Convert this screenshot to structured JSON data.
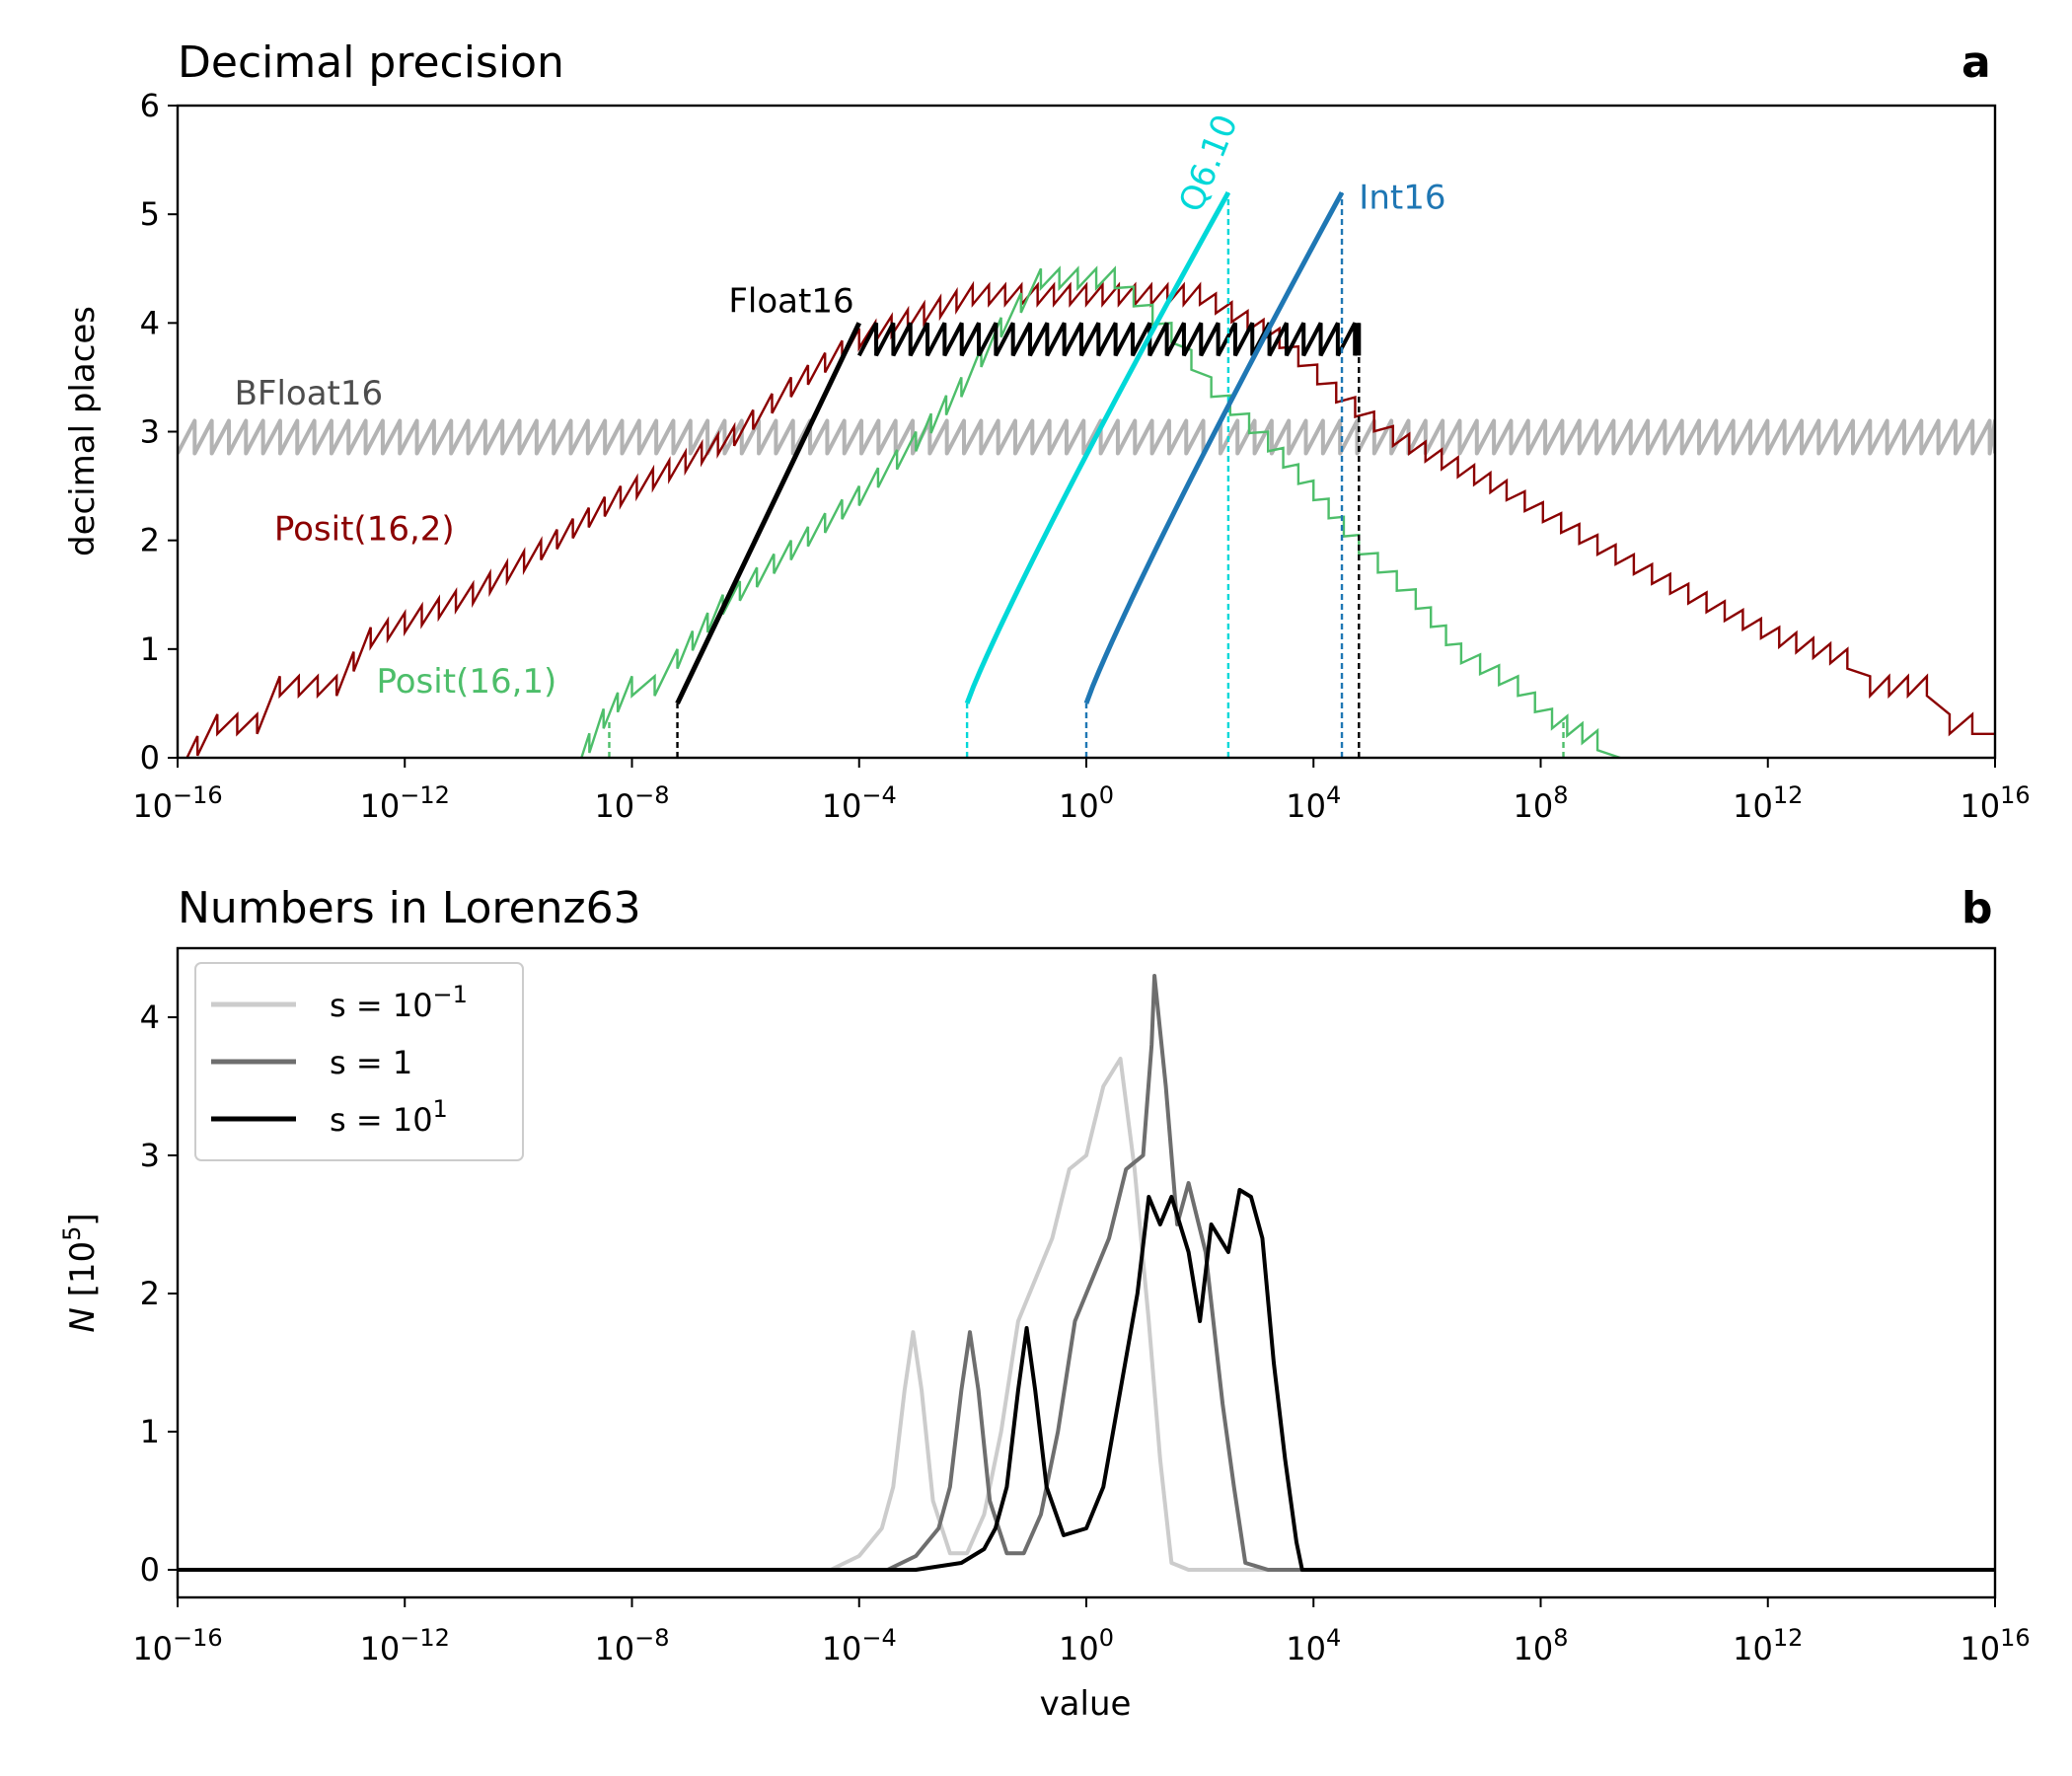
{
  "chart_data": [
    {
      "panel": "a",
      "type": "line",
      "title": "Decimal precision",
      "xlabel": "",
      "ylabel": "decimal places",
      "xscale": "log",
      "xlim": [
        1e-16,
        1e+16
      ],
      "ylim": [
        0,
        6
      ],
      "xticks": [
        1e-16,
        1e-12,
        1e-08,
        0.0001,
        1,
        10000.0,
        100000000.0,
        1000000000000.0,
        1e+16
      ],
      "xticklabels": [
        {
          "base": "10",
          "exp": "−16"
        },
        {
          "base": "10",
          "exp": "−12"
        },
        {
          "base": "10",
          "exp": "−8"
        },
        {
          "base": "10",
          "exp": "−4"
        },
        {
          "base": "10",
          "exp": "0"
        },
        {
          "base": "10",
          "exp": "4"
        },
        {
          "base": "10",
          "exp": "8"
        },
        {
          "base": "10",
          "exp": "12"
        },
        {
          "base": "10",
          "exp": "16"
        }
      ],
      "yticks": [
        0,
        1,
        2,
        3,
        4,
        5,
        6
      ],
      "grid": false,
      "series": [
        {
          "name": "BFloat16",
          "color": "#b3b3b3",
          "label_color": "#4d4d4d",
          "kind": "sawtooth",
          "xrange_log10": [
            -16,
            16
          ],
          "ymin": 2.8,
          "ymax": 3.1,
          "label_at": [
            -15,
            3.25
          ]
        },
        {
          "name": "Posit(16,2)",
          "color": "#8b0000",
          "kind": "envelope",
          "env_log10": [
            [
              -16,
              0
            ],
            [
              -15.3,
              0.4
            ],
            [
              -14.6,
              0.4
            ],
            [
              -14.2,
              0.75
            ],
            [
              -13.2,
              0.75
            ],
            [
              -12.6,
              1.2
            ],
            [
              -10.8,
              1.6
            ],
            [
              -9.6,
              2.0
            ],
            [
              -8.2,
              2.5
            ],
            [
              -6.2,
              3.05
            ],
            [
              -5.2,
              3.5
            ],
            [
              -4.0,
              3.95
            ],
            [
              -2.0,
              4.35
            ],
            [
              0,
              4.35
            ],
            [
              2.0,
              4.35
            ],
            [
              3.4,
              3.95
            ],
            [
              4.4,
              3.45
            ],
            [
              5.4,
              3.05
            ],
            [
              7.4,
              2.55
            ],
            [
              9.0,
              2.05
            ],
            [
              10.6,
              1.6
            ],
            [
              12.2,
              1.2
            ],
            [
              13.4,
              1.0
            ],
            [
              13.8,
              0.75
            ],
            [
              14.8,
              0.75
            ],
            [
              15.2,
              0.4
            ],
            [
              15.6,
              0.4
            ],
            [
              16,
              0.22
            ]
          ],
          "label_at": [
            -14.3,
            2.0
          ]
        },
        {
          "name": "Posit(16,1)",
          "color": "#4dbe6a",
          "kind": "envelope",
          "env_log10": [
            [
              -9.0,
              0
            ],
            [
              -8.5,
              0.45
            ],
            [
              -8.0,
              0.75
            ],
            [
              -7.6,
              0.75
            ],
            [
              -7.2,
              1.0
            ],
            [
              -6.4,
              1.5
            ],
            [
              -5.2,
              2.0
            ],
            [
              -4.0,
              2.5
            ],
            [
              -3.0,
              3.0
            ],
            [
              -2.2,
              3.5
            ],
            [
              -1.5,
              4.05
            ],
            [
              -0.8,
              4.5
            ],
            [
              0.5,
              4.5
            ],
            [
              1.5,
              4.0
            ],
            [
              2.2,
              3.5
            ],
            [
              3.2,
              3.0
            ],
            [
              4.0,
              2.55
            ],
            [
              4.8,
              2.05
            ],
            [
              5.8,
              1.55
            ],
            [
              6.6,
              1.05
            ],
            [
              7.6,
              0.75
            ],
            [
              8.2,
              0.45
            ],
            [
              9.0,
              0.25
            ],
            [
              9.4,
              0
            ]
          ],
          "label_at": [
            -12.5,
            0.6
          ],
          "dashed_bounds_log10": [
            -8.4,
            8.4
          ]
        },
        {
          "name": "Float16",
          "color": "#000000",
          "kind": "ramp-sawtooth",
          "ramp_log10": [
            -7.2,
            -4.0
          ],
          "ramp_y": [
            0.5,
            4.0
          ],
          "saw_xrange_log10": [
            -4.0,
            4.8
          ],
          "ymin": 3.7,
          "ymax": 4.0,
          "label_at": [
            -6.3,
            4.1
          ],
          "dashed_bound_log10": 4.8
        },
        {
          "name": "Q6.10",
          "color": "#00d8d8",
          "kind": "ramp",
          "points_log10": [
            [
              -2.1,
              0.5
            ],
            [
              2.5,
              5.2
            ]
          ],
          "label_at": [
            2.0,
            5.0
          ],
          "label_rotation": -68,
          "dashed_bounds_log10": [
            -2.1,
            2.5
          ]
        },
        {
          "name": "Int16",
          "color": "#1f77b4",
          "kind": "ramp",
          "points_log10": [
            [
              0,
              0.5
            ],
            [
              4.5,
              5.2
            ]
          ],
          "label_at": [
            4.8,
            5.05
          ],
          "dashed_bounds_log10": [
            0,
            4.5
          ]
        }
      ]
    },
    {
      "panel": "b",
      "type": "line",
      "title": "Numbers in Lorenz63",
      "xlabel": "value",
      "ylabel": {
        "base": "N [10",
        "exp": "5",
        "close": "]"
      },
      "xscale": "log",
      "xlim": [
        1e-16,
        1e+16
      ],
      "ylim": [
        -0.2,
        4.5
      ],
      "yticks": [
        0,
        1,
        2,
        3,
        4
      ],
      "legend": {
        "position": "top-left"
      },
      "series": [
        {
          "name": {
            "base": "s = 10",
            "exp": "−1"
          },
          "color": "#cccccc",
          "points_log10": [
            [
              -16,
              0
            ],
            [
              -4.5,
              0
            ],
            [
              -4.0,
              0.1
            ],
            [
              -3.6,
              0.3
            ],
            [
              -3.4,
              0.6
            ],
            [
              -3.2,
              1.3
            ],
            [
              -3.05,
              1.72
            ],
            [
              -2.9,
              1.3
            ],
            [
              -2.7,
              0.5
            ],
            [
              -2.4,
              0.12
            ],
            [
              -2.1,
              0.12
            ],
            [
              -1.8,
              0.4
            ],
            [
              -1.5,
              1.0
            ],
            [
              -1.2,
              1.8
            ],
            [
              -1.0,
              2.0
            ],
            [
              -0.6,
              2.4
            ],
            [
              -0.3,
              2.9
            ],
            [
              0,
              3.0
            ],
            [
              0.3,
              3.5
            ],
            [
              0.6,
              3.7
            ],
            [
              0.85,
              2.9
            ],
            [
              1.1,
              1.8
            ],
            [
              1.3,
              0.8
            ],
            [
              1.5,
              0.05
            ],
            [
              1.8,
              0
            ],
            [
              16,
              0
            ]
          ]
        },
        {
          "name": "s = 1",
          "color": "#6e6e6e",
          "points_log10": [
            [
              -16,
              0
            ],
            [
              -3.5,
              0
            ],
            [
              -3.0,
              0.1
            ],
            [
              -2.6,
              0.3
            ],
            [
              -2.4,
              0.6
            ],
            [
              -2.2,
              1.3
            ],
            [
              -2.05,
              1.72
            ],
            [
              -1.9,
              1.3
            ],
            [
              -1.7,
              0.5
            ],
            [
              -1.4,
              0.12
            ],
            [
              -1.1,
              0.12
            ],
            [
              -0.8,
              0.4
            ],
            [
              -0.5,
              1.0
            ],
            [
              -0.2,
              1.8
            ],
            [
              0,
              2.0
            ],
            [
              0.4,
              2.4
            ],
            [
              0.7,
              2.9
            ],
            [
              1.0,
              3.0
            ],
            [
              1.15,
              3.8
            ],
            [
              1.2,
              4.3
            ],
            [
              1.4,
              3.5
            ],
            [
              1.6,
              2.5
            ],
            [
              1.8,
              2.8
            ],
            [
              2.1,
              2.3
            ],
            [
              2.4,
              1.2
            ],
            [
              2.6,
              0.6
            ],
            [
              2.8,
              0.05
            ],
            [
              3.2,
              0
            ],
            [
              16,
              0
            ]
          ]
        },
        {
          "name": {
            "base": "s = 10",
            "exp": "1"
          },
          "color": "#000000",
          "points_log10": [
            [
              -16,
              0
            ],
            [
              -3.0,
              0
            ],
            [
              -2.2,
              0.05
            ],
            [
              -1.8,
              0.15
            ],
            [
              -1.6,
              0.3
            ],
            [
              -1.4,
              0.6
            ],
            [
              -1.2,
              1.3
            ],
            [
              -1.05,
              1.75
            ],
            [
              -0.9,
              1.3
            ],
            [
              -0.7,
              0.6
            ],
            [
              -0.4,
              0.25
            ],
            [
              0,
              0.3
            ],
            [
              0.3,
              0.6
            ],
            [
              0.6,
              1.3
            ],
            [
              0.9,
              2.0
            ],
            [
              1.1,
              2.7
            ],
            [
              1.3,
              2.5
            ],
            [
              1.5,
              2.7
            ],
            [
              1.8,
              2.3
            ],
            [
              2.0,
              1.8
            ],
            [
              2.2,
              2.5
            ],
            [
              2.5,
              2.3
            ],
            [
              2.7,
              2.75
            ],
            [
              2.9,
              2.7
            ],
            [
              3.1,
              2.4
            ],
            [
              3.3,
              1.5
            ],
            [
              3.5,
              0.8
            ],
            [
              3.7,
              0.2
            ],
            [
              3.8,
              0
            ],
            [
              16,
              0
            ]
          ]
        }
      ]
    }
  ]
}
